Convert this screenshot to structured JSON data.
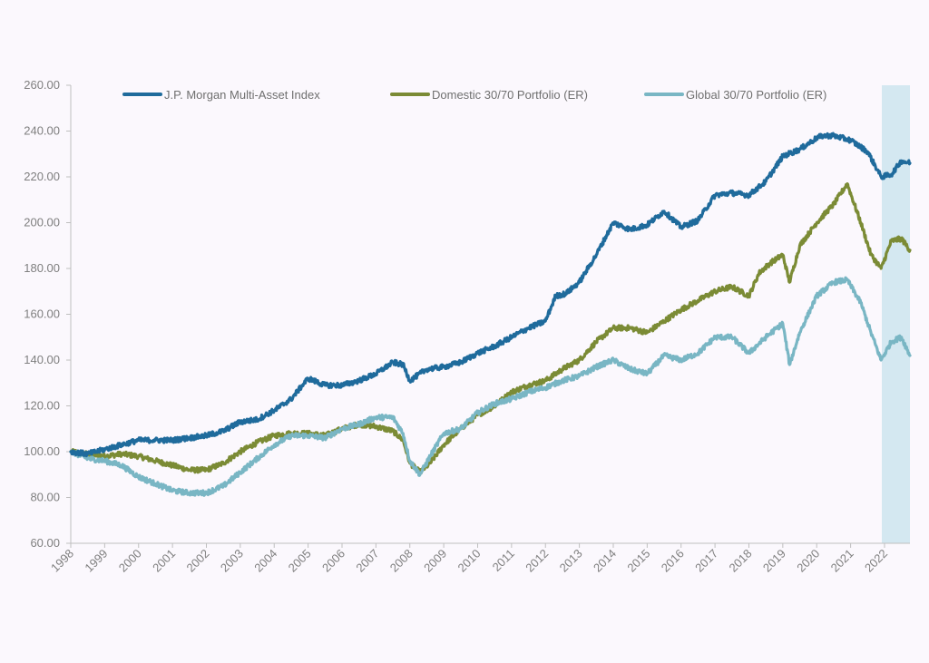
{
  "chart_data": {
    "type": "line",
    "title": "",
    "xlabel": "",
    "ylabel": "",
    "x_ticks": [
      "1998",
      "1999",
      "2000",
      "2001",
      "2002",
      "2003",
      "2004",
      "2005",
      "2006",
      "2007",
      "2008",
      "2009",
      "2010",
      "2011",
      "2012",
      "2013",
      "2014",
      "2015",
      "2016",
      "2017",
      "2018",
      "2019",
      "2020",
      "2021",
      "2022"
    ],
    "y_ticks": [
      "60.00",
      "80.00",
      "100.00",
      "120.00",
      "140.00",
      "160.00",
      "180.00",
      "200.00",
      "220.00",
      "240.00",
      "260.00"
    ],
    "ylim": [
      60,
      260
    ],
    "xlim": [
      1998.0,
      2022.75
    ],
    "grid": false,
    "legend_position": "top",
    "shaded_region": {
      "x_start": 2021.92,
      "x_end": 2022.75,
      "color": "#d4e8f1"
    },
    "series": [
      {
        "name": "J.P. Morgan Multi-Asset Index",
        "color": "#1f6b9c",
        "x": [
          1998.0,
          1998.5,
          1999.0,
          1999.5,
          2000.0,
          2000.5,
          2001.0,
          2001.5,
          2002.0,
          2002.5,
          2003.0,
          2003.5,
          2004.0,
          2004.5,
          2005.0,
          2005.5,
          2006.0,
          2006.5,
          2007.0,
          2007.5,
          2007.8,
          2008.0,
          2008.5,
          2009.0,
          2009.5,
          2010.0,
          2010.5,
          2011.0,
          2011.5,
          2012.0,
          2012.3,
          2012.6,
          2013.0,
          2013.5,
          2014.0,
          2014.5,
          2015.0,
          2015.5,
          2016.0,
          2016.5,
          2017.0,
          2017.5,
          2018.0,
          2018.5,
          2019.0,
          2019.5,
          2020.0,
          2020.2,
          2020.5,
          2021.0,
          2021.5,
          2021.9,
          2022.2,
          2022.5,
          2022.75
        ],
        "y": [
          100,
          99,
          101,
          103,
          105,
          105,
          105,
          106,
          107,
          109,
          113,
          114,
          118,
          123,
          132,
          129,
          129,
          131,
          134,
          139,
          138,
          131,
          136,
          137,
          139,
          143,
          146,
          150,
          154,
          157,
          168,
          169,
          174,
          186,
          200,
          197,
          199,
          205,
          198,
          201,
          212,
          213,
          212,
          218,
          229,
          232,
          237,
          238,
          238,
          236,
          231,
          220,
          221,
          227,
          226
        ]
      },
      {
        "name": "Domestic 30/70 Portfolio (ER)",
        "color": "#7b8b35",
        "x": [
          1998.0,
          1998.5,
          1999.0,
          1999.5,
          2000.0,
          2000.5,
          2001.0,
          2001.5,
          2002.0,
          2002.5,
          2003.0,
          2003.5,
          2004.0,
          2004.5,
          2005.0,
          2005.5,
          2006.0,
          2006.5,
          2007.0,
          2007.5,
          2007.8,
          2008.0,
          2008.3,
          2008.6,
          2009.0,
          2009.5,
          2010.0,
          2010.5,
          2011.0,
          2011.5,
          2012.0,
          2012.5,
          2013.0,
          2013.5,
          2014.0,
          2014.5,
          2015.0,
          2015.5,
          2016.0,
          2016.5,
          2017.0,
          2017.5,
          2018.0,
          2018.3,
          2018.6,
          2019.0,
          2019.2,
          2019.5,
          2020.0,
          2020.5,
          2020.9,
          2021.3,
          2021.6,
          2021.9,
          2022.2,
          2022.5,
          2022.75
        ],
        "y": [
          100,
          99,
          98,
          99,
          98,
          96,
          94,
          92,
          92,
          95,
          100,
          104,
          107,
          108,
          108,
          107,
          110,
          112,
          111,
          109,
          105,
          95,
          91,
          95,
          103,
          110,
          116,
          120,
          126,
          129,
          131,
          136,
          140,
          148,
          154,
          154,
          152,
          157,
          162,
          166,
          170,
          172,
          168,
          178,
          182,
          186,
          174,
          190,
          200,
          208,
          217,
          200,
          186,
          180,
          192,
          193,
          188
        ]
      },
      {
        "name": "Global 30/70 Portfolio (ER)",
        "color": "#79b6c4",
        "x": [
          1998.0,
          1998.5,
          1999.0,
          1999.5,
          2000.0,
          2000.5,
          2001.0,
          2001.5,
          2002.0,
          2002.5,
          2003.0,
          2003.5,
          2004.0,
          2004.5,
          2005.0,
          2005.5,
          2006.0,
          2006.5,
          2007.0,
          2007.5,
          2007.8,
          2008.0,
          2008.3,
          2008.6,
          2009.0,
          2009.5,
          2010.0,
          2010.5,
          2011.0,
          2011.5,
          2012.0,
          2012.5,
          2013.0,
          2013.5,
          2014.0,
          2014.5,
          2015.0,
          2015.5,
          2016.0,
          2016.5,
          2017.0,
          2017.5,
          2018.0,
          2018.5,
          2019.0,
          2019.2,
          2019.5,
          2020.0,
          2020.5,
          2020.9,
          2021.3,
          2021.6,
          2021.9,
          2022.2,
          2022.5,
          2022.75
        ],
        "y": [
          100,
          97,
          96,
          94,
          89,
          86,
          83,
          82,
          82,
          85,
          91,
          97,
          103,
          107,
          107,
          106,
          110,
          112,
          115,
          115,
          108,
          96,
          90,
          98,
          108,
          110,
          117,
          121,
          123,
          126,
          128,
          131,
          133,
          137,
          140,
          136,
          134,
          142,
          140,
          143,
          150,
          150,
          143,
          150,
          156,
          138,
          152,
          168,
          174,
          175,
          165,
          152,
          140,
          148,
          150,
          142
        ]
      }
    ]
  }
}
